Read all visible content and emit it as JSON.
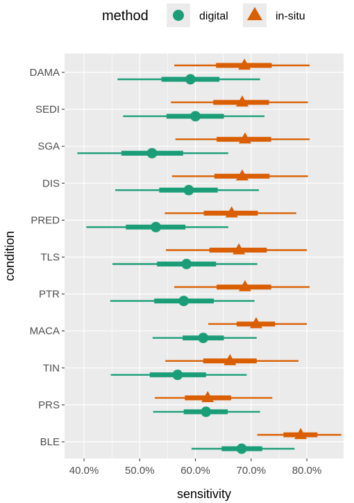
{
  "chart_data": {
    "type": "pointrange",
    "xlabel": "sensitivity",
    "ylabel": "condition",
    "xlim": [
      0.365,
      0.866
    ],
    "x_ticks": [
      0.4,
      0.5,
      0.6,
      0.7,
      0.8
    ],
    "x_tick_labels": [
      "40.0%",
      "50.0%",
      "60.0%",
      "70.0%",
      "80.0%"
    ],
    "grid": true,
    "legend": {
      "title": "method",
      "position": "top",
      "entries": [
        {
          "label": "digital",
          "shape": "circle",
          "color": "#1b9e77"
        },
        {
          "label": "in-situ",
          "shape": "triangle",
          "color": "#d95f02"
        }
      ]
    },
    "categories": [
      "DAMA",
      "SEDI",
      "SGA",
      "DIS",
      "PRED",
      "TLS",
      "PTR",
      "MACA",
      "TIN",
      "PRS",
      "BLE"
    ],
    "series": [
      {
        "name": "digital",
        "color": "#1b9e77",
        "points": [
          {
            "category": "DAMA",
            "value": 0.591,
            "inner": [
              0.539,
              0.643
            ],
            "outer": [
              0.46,
              0.716
            ]
          },
          {
            "category": "SEDI",
            "value": 0.6,
            "inner": [
              0.548,
              0.651
            ],
            "outer": [
              0.47,
              0.724
            ]
          },
          {
            "category": "SGA",
            "value": 0.522,
            "inner": [
              0.467,
              0.578
            ],
            "outer": [
              0.388,
              0.659
            ]
          },
          {
            "category": "DIS",
            "value": 0.588,
            "inner": [
              0.535,
              0.64
            ],
            "outer": [
              0.456,
              0.714
            ]
          },
          {
            "category": "PRED",
            "value": 0.529,
            "inner": [
              0.475,
              0.582
            ],
            "outer": [
              0.404,
              0.659
            ]
          },
          {
            "category": "TLS",
            "value": 0.584,
            "inner": [
              0.531,
              0.637
            ],
            "outer": [
              0.451,
              0.711
            ]
          },
          {
            "category": "PTR",
            "value": 0.579,
            "inner": [
              0.526,
              0.633
            ],
            "outer": [
              0.447,
              0.706
            ]
          },
          {
            "category": "MACA",
            "value": 0.614,
            "inner": [
              0.577,
              0.651
            ],
            "outer": [
              0.523,
              0.71
            ]
          },
          {
            "category": "TIN",
            "value": 0.568,
            "inner": [
              0.518,
              0.619
            ],
            "outer": [
              0.448,
              0.692
            ]
          },
          {
            "category": "PRS",
            "value": 0.619,
            "inner": [
              0.579,
              0.658
            ],
            "outer": [
              0.524,
              0.716
            ]
          },
          {
            "category": "BLE",
            "value": 0.683,
            "inner": [
              0.647,
              0.72
            ],
            "outer": [
              0.593,
              0.778
            ]
          }
        ]
      },
      {
        "name": "in-situ",
        "color": "#d95f02",
        "points": [
          {
            "category": "DAMA",
            "value": 0.688,
            "inner": [
              0.637,
              0.737
            ],
            "outer": [
              0.562,
              0.805
            ]
          },
          {
            "category": "SEDI",
            "value": 0.684,
            "inner": [
              0.632,
              0.732
            ],
            "outer": [
              0.556,
              0.802
            ]
          },
          {
            "category": "SGA",
            "value": 0.689,
            "inner": [
              0.638,
              0.736
            ],
            "outer": [
              0.564,
              0.805
            ]
          },
          {
            "category": "DIS",
            "value": 0.684,
            "inner": [
              0.634,
              0.733
            ],
            "outer": [
              0.558,
              0.802
            ]
          },
          {
            "category": "PRED",
            "value": 0.665,
            "inner": [
              0.615,
              0.712
            ],
            "outer": [
              0.545,
              0.781
            ]
          },
          {
            "category": "TLS",
            "value": 0.678,
            "inner": [
              0.625,
              0.728
            ],
            "outer": [
              0.547,
              0.8
            ]
          },
          {
            "category": "PTR",
            "value": 0.689,
            "inner": [
              0.638,
              0.736
            ],
            "outer": [
              0.562,
              0.805
            ]
          },
          {
            "category": "MACA",
            "value": 0.709,
            "inner": [
              0.674,
              0.743
            ],
            "outer": [
              0.623,
              0.8
            ]
          },
          {
            "category": "TIN",
            "value": 0.662,
            "inner": [
              0.614,
              0.71
            ],
            "outer": [
              0.546,
              0.785
            ]
          },
          {
            "category": "PRS",
            "value": 0.622,
            "inner": [
              0.581,
              0.664
            ],
            "outer": [
              0.527,
              0.738
            ]
          },
          {
            "category": "BLE",
            "value": 0.789,
            "inner": [
              0.758,
              0.819
            ],
            "outer": [
              0.711,
              0.862
            ]
          }
        ]
      }
    ]
  }
}
